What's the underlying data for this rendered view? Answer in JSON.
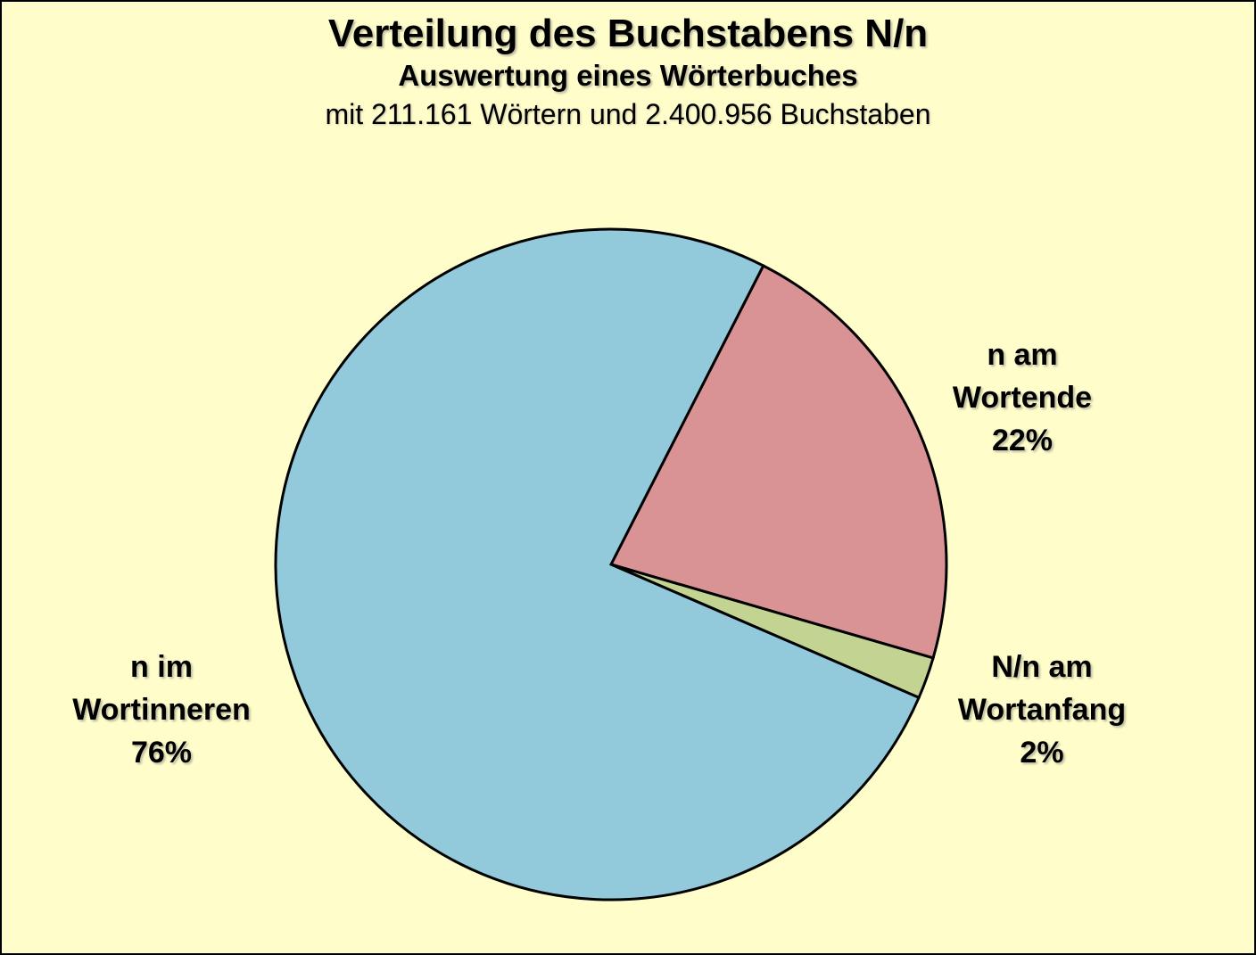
{
  "chart_data": {
    "type": "pie",
    "title": "Verteilung des Buchstabens N/n",
    "subtitle": "Auswertung eines Wörterbuches",
    "note": "mit 211.161 Wörtern und 2.400.956 Buchstaben",
    "background_color": "#fffdca",
    "stroke_color": "#000000",
    "start_angle_deg": 27,
    "direction": "clockwise",
    "legend": "none",
    "slices": [
      {
        "key": "n-am-wortende",
        "label": "n am Wortende",
        "percent_text": "22%",
        "value": 22,
        "color": "#d99394",
        "label_lines": [
          "n am",
          "Wortende",
          "22%"
        ]
      },
      {
        "key": "n-am-wortanfang",
        "label": "N/n am Wortanfang",
        "percent_text": "2%",
        "value": 2,
        "color": "#c3d492",
        "label_lines": [
          "N/n am",
          "Wortanfang",
          "2%"
        ]
      },
      {
        "key": "n-im-wortinneren",
        "label": "n im Wortinneren",
        "percent_text": "76%",
        "value": 76,
        "color": "#92cadc",
        "label_lines": [
          "n im",
          "Wortinneren",
          "76%"
        ]
      }
    ]
  }
}
